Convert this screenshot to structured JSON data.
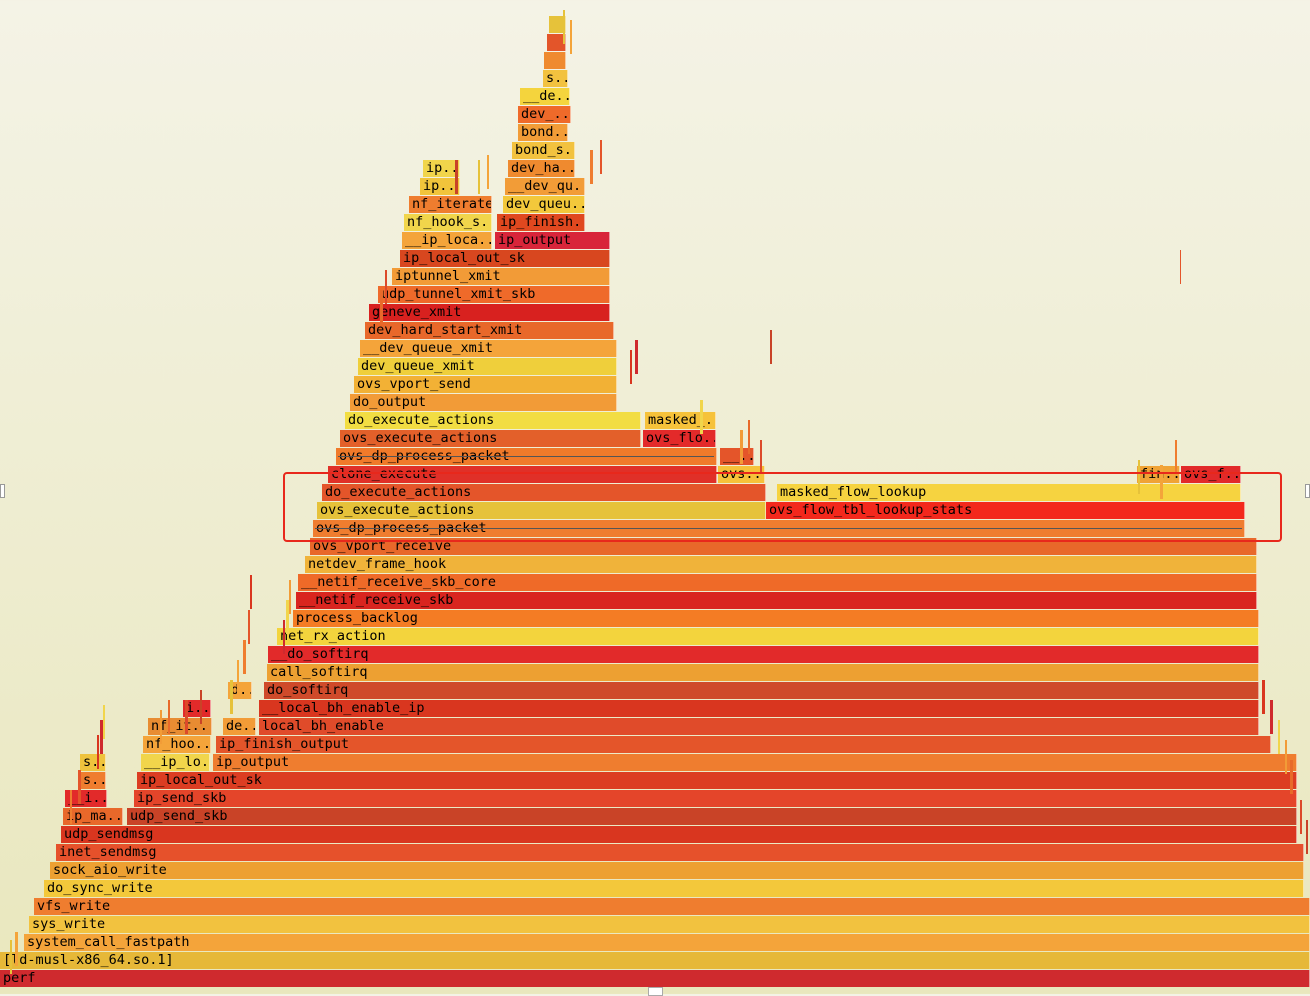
{
  "chart_data": {
    "type": "flamegraph",
    "palette": [
      "#e6c23a",
      "#f4a43a",
      "#ef7d2f",
      "#e4552a",
      "#d9361f",
      "#cf2a2e",
      "#f1d54b",
      "#f29c37",
      "#e86a2a",
      "#dc4a2a",
      "#c94327"
    ],
    "highlight_color": "#e8281c",
    "frames": [
      {
        "name": "perf",
        "label": "perf",
        "start": 0,
        "end": 1310,
        "depth": 0,
        "color": "#cf2a2e"
      },
      {
        "name": "ld-musl-x86_64.so.1",
        "label": "[ld-musl-x86_64.so.1]",
        "start": 0,
        "end": 1310,
        "depth": 1,
        "color": "#e6b838"
      },
      {
        "name": "system_call_fastpath",
        "label": "system_call_fastpath",
        "start": 24,
        "end": 1310,
        "depth": 2,
        "color": "#f4a43a"
      },
      {
        "name": "sys_write",
        "label": "sys_write",
        "start": 29,
        "end": 1310,
        "depth": 3,
        "color": "#f2c23f"
      },
      {
        "name": "vfs_write",
        "label": "vfs_write",
        "start": 34,
        "end": 1310,
        "depth": 4,
        "color": "#ef7d2f"
      },
      {
        "name": "do_sync_write",
        "label": "do_sync_write",
        "start": 44,
        "end": 1304,
        "depth": 5,
        "color": "#f3c83b"
      },
      {
        "name": "sock_aio_write",
        "label": "sock_aio_write",
        "start": 50,
        "end": 1304,
        "depth": 6,
        "color": "#eda032"
      },
      {
        "name": "inet_sendmsg",
        "label": "inet_sendmsg",
        "start": 56,
        "end": 1304,
        "depth": 7,
        "color": "#e6512b"
      },
      {
        "name": "udp_sendmsg",
        "label": "udp_sendmsg",
        "start": 61,
        "end": 1297,
        "depth": 8,
        "color": "#d9361f"
      },
      {
        "name": "ip_make_skb",
        "label": "ip_ma..",
        "start": 63,
        "end": 123,
        "depth": 9,
        "color": "#e8682a"
      },
      {
        "name": "udp_send_skb",
        "label": "udp_send_skb",
        "start": 127,
        "end": 1297,
        "depth": 9,
        "color": "#c94327"
      },
      {
        "name": "i_frag",
        "label": "__i..",
        "start": 65,
        "end": 107,
        "depth": 10,
        "color": "#e22a2a"
      },
      {
        "name": "ip_send_skb",
        "label": "ip_send_skb",
        "start": 134,
        "end": 1297,
        "depth": 10,
        "color": "#e4452a"
      },
      {
        "name": "s_1",
        "label": "s..",
        "start": 80,
        "end": 106,
        "depth": 11,
        "color": "#ef7d2f"
      },
      {
        "name": "ip_local_out_sk_low",
        "label": "ip_local_out_sk",
        "start": 137,
        "end": 1297,
        "depth": 11,
        "color": "#dc3d22"
      },
      {
        "name": "s_2",
        "label": "s..",
        "start": 80,
        "end": 106,
        "depth": 12,
        "color": "#efc33d"
      },
      {
        "name": "__ip_local_out_low",
        "label": "__ip_lo..",
        "start": 141,
        "end": 210,
        "depth": 12,
        "color": "#f1d54b"
      },
      {
        "name": "ip_output_low",
        "label": "ip_output",
        "start": 213,
        "end": 1297,
        "depth": 12,
        "color": "#ef7d2f"
      },
      {
        "name": "nf_hook_slow_low",
        "label": "nf_hoo..",
        "start": 143,
        "end": 211,
        "depth": 13,
        "color": "#f4a43a"
      },
      {
        "name": "ip_finish_output_low",
        "label": "ip_finish_output",
        "start": 216,
        "end": 1271,
        "depth": 13,
        "color": "#e4552a"
      },
      {
        "name": "nf_iterate_low",
        "label": "nf_it..",
        "start": 148,
        "end": 212,
        "depth": 14,
        "color": "#e88c32"
      },
      {
        "name": "dev_queue_xmit_low",
        "label": "de..",
        "start": 223,
        "end": 256,
        "depth": 14,
        "color": "#f29c37"
      },
      {
        "name": "local_bh_enable",
        "label": "local_bh_enable",
        "start": 259,
        "end": 1259,
        "depth": 14,
        "color": "#e04b2a"
      },
      {
        "name": "i_2",
        "label": "i..",
        "start": 183,
        "end": 211,
        "depth": 15,
        "color": "#e22a2a"
      },
      {
        "name": "__local_bh_enable_ip",
        "label": "__local_bh_enable_ip",
        "start": 259,
        "end": 1259,
        "depth": 15,
        "color": "#d9361f"
      },
      {
        "name": "d_1",
        "label": "d..",
        "start": 228,
        "end": 252,
        "depth": 16,
        "color": "#f4a43a"
      },
      {
        "name": "do_softirq_low",
        "label": "do_softirq",
        "start": 264,
        "end": 1259,
        "depth": 16,
        "color": "#cf4a2a"
      },
      {
        "name": "call_softirq",
        "label": "call_softirq",
        "start": 267,
        "end": 1259,
        "depth": 17,
        "color": "#eda032"
      },
      {
        "name": "__do_softirq",
        "label": "__do_softirq",
        "start": 268,
        "end": 1259,
        "depth": 18,
        "color": "#e22a2a"
      },
      {
        "name": "net_rx_action",
        "label": "net_rx_action",
        "start": 277,
        "end": 1259,
        "depth": 19,
        "color": "#f3d43d"
      },
      {
        "name": "process_backlog",
        "label": "process_backlog",
        "start": 293,
        "end": 1259,
        "depth": 20,
        "color": "#f47c24"
      },
      {
        "name": "__netif_receive_skb",
        "label": "__netif_receive_skb",
        "start": 296,
        "end": 1257,
        "depth": 21,
        "color": "#d9251f"
      },
      {
        "name": "__netif_receive_skb_core",
        "label": "__netif_receive_skb_core",
        "start": 298,
        "end": 1257,
        "depth": 22,
        "color": "#ef6a28"
      },
      {
        "name": "netdev_frame_hook",
        "label": "netdev_frame_hook",
        "start": 305,
        "end": 1257,
        "depth": 23,
        "color": "#f0b33a"
      },
      {
        "name": "ovs_vport_receive",
        "label": "ovs_vport_receive",
        "start": 310,
        "end": 1257,
        "depth": 24,
        "color": "#e8682a"
      },
      {
        "name": "ovs_dp_process_packet_low",
        "label": "ovs_dp_process_packet",
        "start": 313,
        "end": 1245,
        "depth": 25,
        "color": "#ef7d2f",
        "strike": true
      },
      {
        "name": "ovs_execute_actions_low",
        "label": "ovs_execute_actions",
        "start": 317,
        "end": 766,
        "depth": 26,
        "color": "#e6c23a"
      },
      {
        "name": "ovs_flow_tbl_lookup_stats",
        "label": "ovs_flow_tbl_lookup_stats",
        "start": 766,
        "end": 1245,
        "depth": 26,
        "color": "#f3281c"
      },
      {
        "name": "do_execute_actions_mid",
        "label": "do_execute_actions",
        "start": 322,
        "end": 766,
        "depth": 27,
        "color": "#e4552a"
      },
      {
        "name": "masked_flow_lookup",
        "label": "masked_flow_lookup",
        "start": 777,
        "end": 1241,
        "depth": 27,
        "color": "#f6d340"
      },
      {
        "name": "clone_execute",
        "label": "clone_execute",
        "start": 328,
        "end": 717,
        "depth": 28,
        "color": "#e03028"
      },
      {
        "name": "ovs_2",
        "label": "ovs..",
        "start": 718,
        "end": 765,
        "depth": 28,
        "color": "#f6c23a"
      },
      {
        "name": "fin_1",
        "label": "fin..",
        "start": 1137,
        "end": 1180,
        "depth": 28,
        "color": "#f0a336"
      },
      {
        "name": "ovs_f_1",
        "label": "ovs_f..",
        "start": 1181,
        "end": 1241,
        "depth": 28,
        "color": "#e22a2a"
      },
      {
        "name": "ovs_dp_process_packet_high",
        "label": "ovs_dp_process_packet",
        "start": 336,
        "end": 717,
        "depth": 29,
        "color": "#f07a2a",
        "strike": true
      },
      {
        "name": "dots_1",
        "label": "__..",
        "start": 720,
        "end": 754,
        "depth": 29,
        "color": "#e4552a"
      },
      {
        "name": "ovs_execute_actions_high",
        "label": "ovs_execute_actions",
        "start": 340,
        "end": 641,
        "depth": 30,
        "color": "#e3602a"
      },
      {
        "name": "ovs_flo_1",
        "label": "ovs_flo..",
        "start": 643,
        "end": 716,
        "depth": 30,
        "color": "#e32a2a"
      },
      {
        "name": "do_execute_actions_high",
        "label": "do_execute_actions",
        "start": 345,
        "end": 641,
        "depth": 31,
        "color": "#f2dd43"
      },
      {
        "name": "masked_1",
        "label": "masked_..",
        "start": 645,
        "end": 716,
        "depth": 31,
        "color": "#f6c23a"
      },
      {
        "name": "do_output",
        "label": "do_output",
        "start": 350,
        "end": 617,
        "depth": 32,
        "color": "#f29b37"
      },
      {
        "name": "ovs_vport_send",
        "label": "ovs_vport_send",
        "start": 354,
        "end": 617,
        "depth": 33,
        "color": "#f2b135"
      },
      {
        "name": "dev_queue_xmit_high",
        "label": "dev_queue_xmit",
        "start": 358,
        "end": 617,
        "depth": 34,
        "color": "#efcf3b"
      },
      {
        "name": "__dev_queue_xmit_high",
        "label": "__dev_queue_xmit",
        "start": 360,
        "end": 617,
        "depth": 35,
        "color": "#f4a43a"
      },
      {
        "name": "dev_hard_start_xmit",
        "label": "dev_hard_start_xmit",
        "start": 365,
        "end": 614,
        "depth": 36,
        "color": "#e8682a"
      },
      {
        "name": "geneve_xmit",
        "label": "geneve_xmit",
        "start": 369,
        "end": 610,
        "depth": 37,
        "color": "#d8211f"
      },
      {
        "name": "udp_tunnel_xmit_skb",
        "label": "udp_tunnel_xmit_skb",
        "start": 378,
        "end": 610,
        "depth": 38,
        "color": "#ef6a2a"
      },
      {
        "name": "iptunnel_xmit",
        "label": "iptunnel_xmit",
        "start": 392,
        "end": 610,
        "depth": 39,
        "color": "#f29b37"
      },
      {
        "name": "ip_local_out_sk_high",
        "label": "ip_local_out_sk",
        "start": 400,
        "end": 610,
        "depth": 40,
        "color": "#d8471f"
      },
      {
        "name": "__ip_local_out_high",
        "label": "__ip_loca..",
        "start": 402,
        "end": 492,
        "depth": 41,
        "color": "#f4a43a"
      },
      {
        "name": "ip_output_high",
        "label": "ip_output",
        "start": 495,
        "end": 610,
        "depth": 41,
        "color": "#d8253a"
      },
      {
        "name": "nf_hook_slow_high",
        "label": "nf_hook_s..",
        "start": 404,
        "end": 492,
        "depth": 42,
        "color": "#f1d54b"
      },
      {
        "name": "ip_finish_2",
        "label": "ip_finish..",
        "start": 497,
        "end": 585,
        "depth": 42,
        "color": "#e0481f"
      },
      {
        "name": "nf_iterate_high",
        "label": "nf_iterate",
        "start": 409,
        "end": 492,
        "depth": 43,
        "color": "#ef7d2f"
      },
      {
        "name": "dev_queu_1",
        "label": "dev_queu..",
        "start": 503,
        "end": 585,
        "depth": 43,
        "color": "#f3c83b"
      },
      {
        "name": "ip_2a",
        "label": "ip..",
        "start": 420,
        "end": 460,
        "depth": 44,
        "color": "#f1c43b"
      },
      {
        "name": "__dev_qu_1",
        "label": "__dev_qu..",
        "start": 505,
        "end": 585,
        "depth": 44,
        "color": "#f29c37"
      },
      {
        "name": "ip_2b",
        "label": "ip..",
        "start": 423,
        "end": 460,
        "depth": 45,
        "color": "#f1d54b"
      },
      {
        "name": "dev_ha_1",
        "label": "dev_ha..",
        "start": 508,
        "end": 575,
        "depth": 45,
        "color": "#ef8a2f"
      },
      {
        "name": "bond_s_1",
        "label": "bond_s..",
        "start": 512,
        "end": 575,
        "depth": 46,
        "color": "#f2c23f"
      },
      {
        "name": "bond_1",
        "label": "bond..",
        "start": 518,
        "end": 568,
        "depth": 47,
        "color": "#f29c37"
      },
      {
        "name": "dev_2",
        "label": "dev_..",
        "start": 518,
        "end": 571,
        "depth": 48,
        "color": "#ef6a2a"
      },
      {
        "name": "__de_1",
        "label": "__de..",
        "start": 520,
        "end": 570,
        "depth": 49,
        "color": "#f4d43d"
      },
      {
        "name": "s_3",
        "label": "s..",
        "start": 543,
        "end": 568,
        "depth": 50,
        "color": "#f2c23f"
      },
      {
        "name": "tip_1",
        "label": "",
        "start": 544,
        "end": 566,
        "depth": 51,
        "color": "#ef8a2f"
      },
      {
        "name": "tip_2",
        "label": "",
        "start": 547,
        "end": 566,
        "depth": 52,
        "color": "#e3552a"
      },
      {
        "name": "tip_3",
        "label": "",
        "start": 549,
        "end": 566,
        "depth": 53,
        "color": "#e6c23a"
      }
    ]
  }
}
